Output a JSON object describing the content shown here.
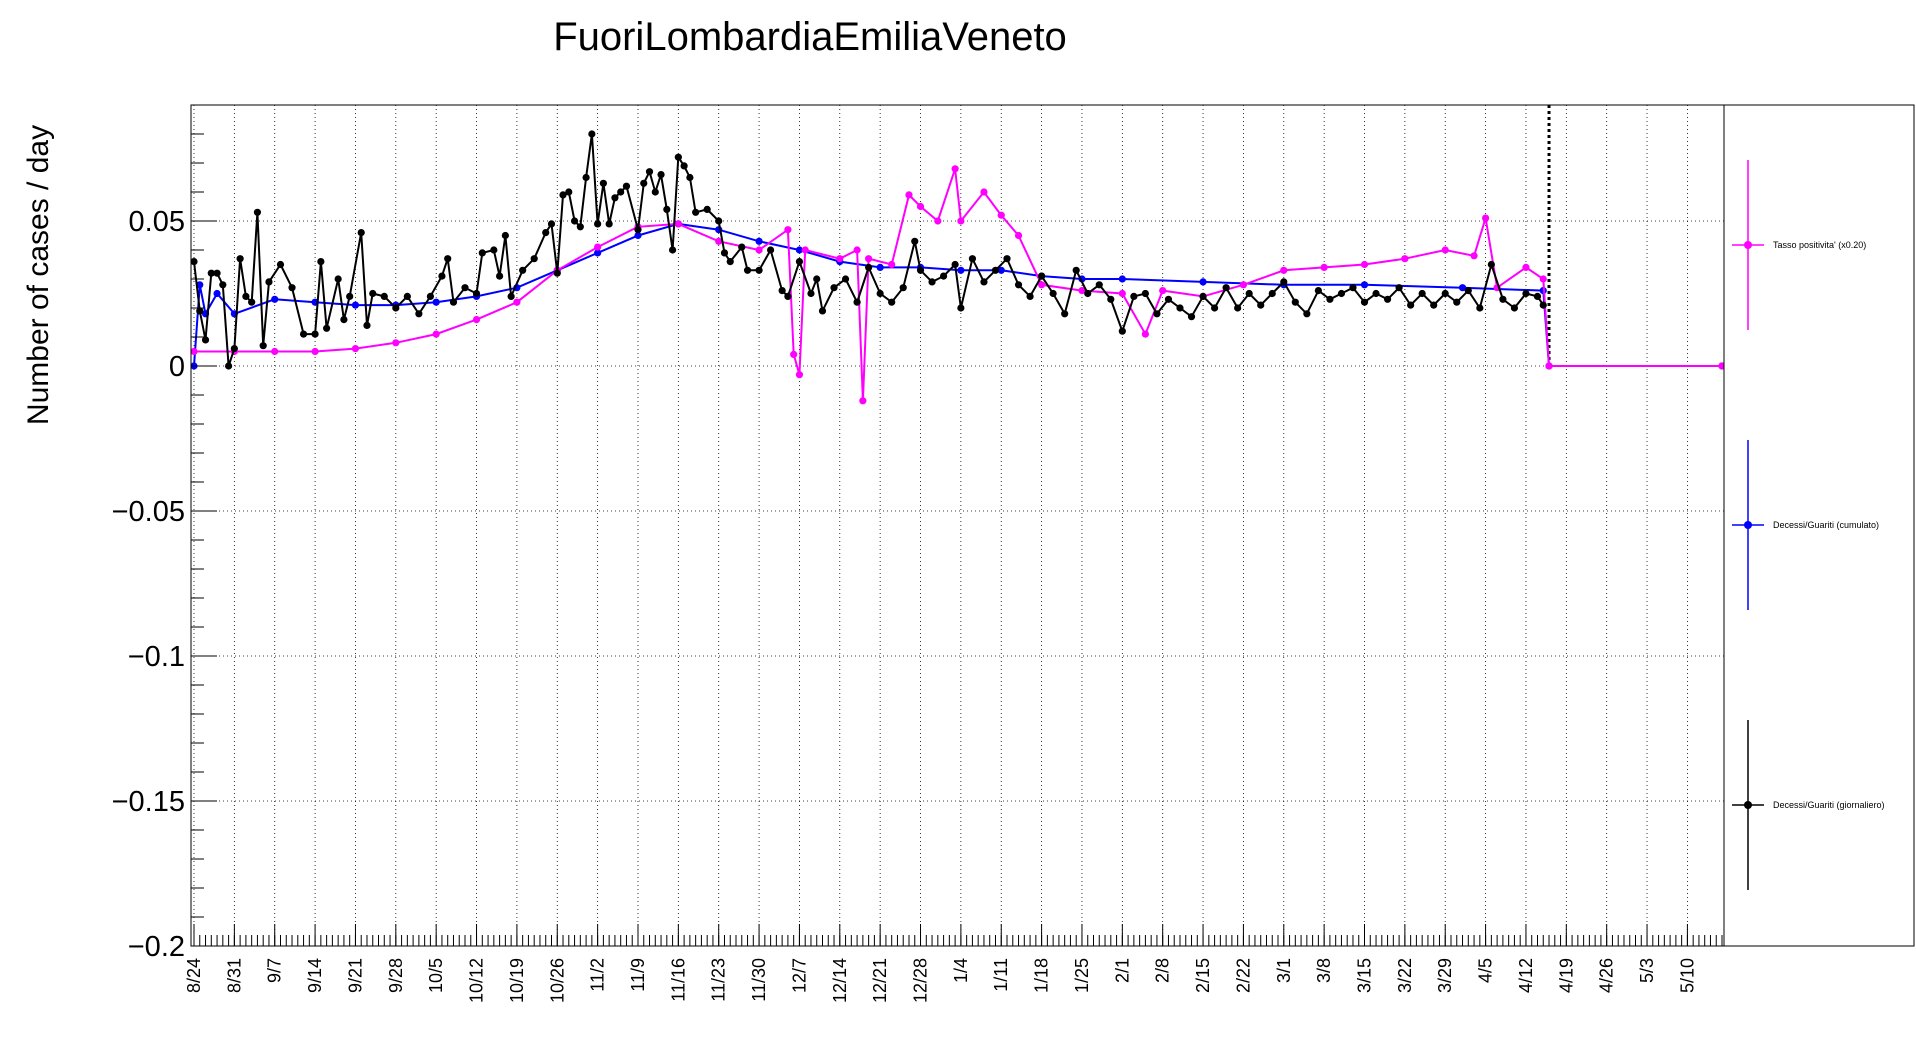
{
  "chart_data": {
    "type": "line",
    "title": "FuoriLombardiaEmiliaVeneto",
    "ylabel": "Number of cases / day",
    "xlabel": "",
    "ylim": [
      -0.2,
      0.09
    ],
    "yticks": [
      0.05,
      0,
      -0.05,
      -0.1,
      -0.15,
      -0.2
    ],
    "ytick_labels": [
      "0.05",
      "0",
      "−0.05",
      "−0.1",
      "−0.15",
      "−0.2"
    ],
    "x_start": "2020-08-24",
    "x_end": "2021-05-16",
    "xtick_dates": [
      "2020-08-24",
      "2020-08-31",
      "2020-09-07",
      "2020-09-14",
      "2020-09-21",
      "2020-09-28",
      "2020-10-05",
      "2020-10-12",
      "2020-10-19",
      "2020-10-26",
      "2020-11-02",
      "2020-11-09",
      "2020-11-16",
      "2020-11-23",
      "2020-11-30",
      "2020-12-07",
      "2020-12-14",
      "2020-12-21",
      "2020-12-28",
      "2021-01-04",
      "2021-01-11",
      "2021-01-18",
      "2021-01-25",
      "2021-02-01",
      "2021-02-08",
      "2021-02-15",
      "2021-02-22",
      "2021-03-01",
      "2021-03-08",
      "2021-03-15",
      "2021-03-22",
      "2021-03-29",
      "2021-04-05",
      "2021-04-12",
      "2021-04-19",
      "2021-04-26",
      "2021-05-03",
      "2021-05-10"
    ],
    "xtick_labels": [
      "8/24",
      "8/31",
      "9/7",
      "9/14",
      "9/21",
      "9/28",
      "10/5",
      "10/12",
      "10/19",
      "10/26",
      "11/2",
      "11/9",
      "11/16",
      "11/23",
      "11/30",
      "12/7",
      "12/14",
      "12/21",
      "12/28",
      "1/4",
      "1/11",
      "1/18",
      "1/25",
      "2/1",
      "2/8",
      "2/15",
      "2/22",
      "3/1",
      "3/8",
      "3/15",
      "3/22",
      "3/29",
      "4/5",
      "4/12",
      "4/19",
      "4/26",
      "5/3",
      "5/10"
    ],
    "vline_date": "2021-04-16",
    "grid": true,
    "legend_position": "right",
    "series": [
      {
        "name": "Tasso positivita' (x0.20)",
        "color": "#ff00ff",
        "points": [
          [
            "2020-08-24",
            0.005
          ],
          [
            "2020-08-31",
            0.005
          ],
          [
            "2020-09-07",
            0.005
          ],
          [
            "2020-09-14",
            0.005
          ],
          [
            "2020-09-21",
            0.006
          ],
          [
            "2020-09-28",
            0.008
          ],
          [
            "2020-10-05",
            0.011
          ],
          [
            "2020-10-12",
            0.016
          ],
          [
            "2020-10-19",
            0.022
          ],
          [
            "2020-10-26",
            0.033
          ],
          [
            "2020-11-02",
            0.041
          ],
          [
            "2020-11-09",
            0.048
          ],
          [
            "2020-11-16",
            0.049
          ],
          [
            "2020-11-23",
            0.043
          ],
          [
            "2020-11-30",
            0.04
          ],
          [
            "2020-12-05",
            0.047
          ],
          [
            "2020-12-06",
            0.004
          ],
          [
            "2020-12-07",
            -0.003
          ],
          [
            "2020-12-08",
            0.04
          ],
          [
            "2020-12-14",
            0.037
          ],
          [
            "2020-12-17",
            0.04
          ],
          [
            "2020-12-18",
            -0.012
          ],
          [
            "2020-12-19",
            0.037
          ],
          [
            "2020-12-23",
            0.035
          ],
          [
            "2020-12-26",
            0.059
          ],
          [
            "2020-12-28",
            0.055
          ],
          [
            "2020-12-31",
            0.05
          ],
          [
            "2021-01-03",
            0.068
          ],
          [
            "2021-01-04",
            0.05
          ],
          [
            "2021-01-08",
            0.06
          ],
          [
            "2021-01-11",
            0.052
          ],
          [
            "2021-01-14",
            0.045
          ],
          [
            "2021-01-18",
            0.028
          ],
          [
            "2021-01-25",
            0.026
          ],
          [
            "2021-02-01",
            0.025
          ],
          [
            "2021-02-05",
            0.011
          ],
          [
            "2021-02-08",
            0.026
          ],
          [
            "2021-02-15",
            0.024
          ],
          [
            "2021-02-22",
            0.028
          ],
          [
            "2021-03-01",
            0.033
          ],
          [
            "2021-03-08",
            0.034
          ],
          [
            "2021-03-15",
            0.035
          ],
          [
            "2021-03-22",
            0.037
          ],
          [
            "2021-03-29",
            0.04
          ],
          [
            "2021-04-03",
            0.038
          ],
          [
            "2021-04-05",
            0.051
          ],
          [
            "2021-04-07",
            0.027
          ],
          [
            "2021-04-12",
            0.034
          ],
          [
            "2021-04-15",
            0.03
          ],
          [
            "2021-04-16",
            0.0
          ],
          [
            "2021-05-16",
            0.0
          ]
        ]
      },
      {
        "name": "Decessi/Guariti (cumulato)",
        "color": "#0000ff",
        "points": [
          [
            "2020-08-24",
            0.0
          ],
          [
            "2020-08-25",
            0.028
          ],
          [
            "2020-08-26",
            0.018
          ],
          [
            "2020-08-28",
            0.025
          ],
          [
            "2020-08-31",
            0.018
          ],
          [
            "2020-09-07",
            0.023
          ],
          [
            "2020-09-14",
            0.022
          ],
          [
            "2020-09-21",
            0.021
          ],
          [
            "2020-09-28",
            0.021
          ],
          [
            "2020-10-05",
            0.022
          ],
          [
            "2020-10-12",
            0.024
          ],
          [
            "2020-10-19",
            0.027
          ],
          [
            "2020-10-26",
            0.033
          ],
          [
            "2020-11-02",
            0.039
          ],
          [
            "2020-11-09",
            0.045
          ],
          [
            "2020-11-16",
            0.049
          ],
          [
            "2020-11-23",
            0.047
          ],
          [
            "2020-11-30",
            0.043
          ],
          [
            "2020-12-07",
            0.04
          ],
          [
            "2020-12-14",
            0.036
          ],
          [
            "2020-12-21",
            0.034
          ],
          [
            "2020-12-28",
            0.034
          ],
          [
            "2021-01-04",
            0.033
          ],
          [
            "2021-01-11",
            0.033
          ],
          [
            "2021-01-18",
            0.031
          ],
          [
            "2021-01-25",
            0.03
          ],
          [
            "2021-02-01",
            0.03
          ],
          [
            "2021-02-15",
            0.029
          ],
          [
            "2021-03-01",
            0.028
          ],
          [
            "2021-03-15",
            0.028
          ],
          [
            "2021-04-01",
            0.027
          ],
          [
            "2021-04-15",
            0.026
          ],
          [
            "2021-04-16",
            0.0
          ],
          [
            "2021-05-16",
            0.0
          ]
        ]
      },
      {
        "name": "Decessi/Guariti (giornaliero)",
        "color": "#000000",
        "points": [
          [
            "2020-08-24",
            0.036
          ],
          [
            "2020-08-25",
            0.019
          ],
          [
            "2020-08-26",
            0.009
          ],
          [
            "2020-08-27",
            0.032
          ],
          [
            "2020-08-28",
            0.032
          ],
          [
            "2020-08-29",
            0.028
          ],
          [
            "2020-08-30",
            0.0
          ],
          [
            "2020-08-31",
            0.006
          ],
          [
            "2020-09-01",
            0.037
          ],
          [
            "2020-09-02",
            0.024
          ],
          [
            "2020-09-03",
            0.022
          ],
          [
            "2020-09-04",
            0.053
          ],
          [
            "2020-09-05",
            0.007
          ],
          [
            "2020-09-06",
            0.029
          ],
          [
            "2020-09-08",
            0.035
          ],
          [
            "2020-09-10",
            0.027
          ],
          [
            "2020-09-12",
            0.011
          ],
          [
            "2020-09-14",
            0.011
          ],
          [
            "2020-09-15",
            0.036
          ],
          [
            "2020-09-16",
            0.013
          ],
          [
            "2020-09-18",
            0.03
          ],
          [
            "2020-09-19",
            0.016
          ],
          [
            "2020-09-20",
            0.024
          ],
          [
            "2020-09-22",
            0.046
          ],
          [
            "2020-09-23",
            0.014
          ],
          [
            "2020-09-24",
            0.025
          ],
          [
            "2020-09-26",
            0.024
          ],
          [
            "2020-09-28",
            0.02
          ],
          [
            "2020-09-30",
            0.024
          ],
          [
            "2020-10-02",
            0.018
          ],
          [
            "2020-10-04",
            0.024
          ],
          [
            "2020-10-06",
            0.031
          ],
          [
            "2020-10-07",
            0.037
          ],
          [
            "2020-10-08",
            0.022
          ],
          [
            "2020-10-10",
            0.027
          ],
          [
            "2020-10-12",
            0.025
          ],
          [
            "2020-10-13",
            0.039
          ],
          [
            "2020-10-15",
            0.04
          ],
          [
            "2020-10-16",
            0.031
          ],
          [
            "2020-10-17",
            0.045
          ],
          [
            "2020-10-18",
            0.024
          ],
          [
            "2020-10-20",
            0.033
          ],
          [
            "2020-10-22",
            0.037
          ],
          [
            "2020-10-24",
            0.046
          ],
          [
            "2020-10-25",
            0.049
          ],
          [
            "2020-10-26",
            0.032
          ],
          [
            "2020-10-27",
            0.059
          ],
          [
            "2020-10-28",
            0.06
          ],
          [
            "2020-10-29",
            0.05
          ],
          [
            "2020-10-30",
            0.048
          ],
          [
            "2020-10-31",
            0.065
          ],
          [
            "2020-11-01",
            0.08
          ],
          [
            "2020-11-02",
            0.049
          ],
          [
            "2020-11-03",
            0.063
          ],
          [
            "2020-11-04",
            0.049
          ],
          [
            "2020-11-05",
            0.058
          ],
          [
            "2020-11-06",
            0.06
          ],
          [
            "2020-11-07",
            0.062
          ],
          [
            "2020-11-09",
            0.047
          ],
          [
            "2020-11-10",
            0.063
          ],
          [
            "2020-11-11",
            0.067
          ],
          [
            "2020-11-12",
            0.06
          ],
          [
            "2020-11-13",
            0.066
          ],
          [
            "2020-11-14",
            0.054
          ],
          [
            "2020-11-15",
            0.04
          ],
          [
            "2020-11-16",
            0.072
          ],
          [
            "2020-11-17",
            0.069
          ],
          [
            "2020-11-18",
            0.065
          ],
          [
            "2020-11-19",
            0.053
          ],
          [
            "2020-11-21",
            0.054
          ],
          [
            "2020-11-23",
            0.05
          ],
          [
            "2020-11-24",
            0.039
          ],
          [
            "2020-11-25",
            0.036
          ],
          [
            "2020-11-27",
            0.041
          ],
          [
            "2020-11-28",
            0.033
          ],
          [
            "2020-11-30",
            0.033
          ],
          [
            "2020-12-02",
            0.04
          ],
          [
            "2020-12-04",
            0.026
          ],
          [
            "2020-12-05",
            0.024
          ],
          [
            "2020-12-07",
            0.036
          ],
          [
            "2020-12-09",
            0.025
          ],
          [
            "2020-12-10",
            0.03
          ],
          [
            "2020-12-11",
            0.019
          ],
          [
            "2020-12-13",
            0.027
          ],
          [
            "2020-12-15",
            0.03
          ],
          [
            "2020-12-17",
            0.022
          ],
          [
            "2020-12-19",
            0.034
          ],
          [
            "2020-12-21",
            0.025
          ],
          [
            "2020-12-23",
            0.022
          ],
          [
            "2020-12-25",
            0.027
          ],
          [
            "2020-12-27",
            0.043
          ],
          [
            "2020-12-28",
            0.033
          ],
          [
            "2020-12-30",
            0.029
          ],
          [
            "2021-01-01",
            0.031
          ],
          [
            "2021-01-03",
            0.035
          ],
          [
            "2021-01-04",
            0.02
          ],
          [
            "2021-01-06",
            0.037
          ],
          [
            "2021-01-08",
            0.029
          ],
          [
            "2021-01-10",
            0.033
          ],
          [
            "2021-01-12",
            0.037
          ],
          [
            "2021-01-14",
            0.028
          ],
          [
            "2021-01-16",
            0.024
          ],
          [
            "2021-01-18",
            0.031
          ],
          [
            "2021-01-20",
            0.025
          ],
          [
            "2021-01-22",
            0.018
          ],
          [
            "2021-01-24",
            0.033
          ],
          [
            "2021-01-26",
            0.025
          ],
          [
            "2021-01-28",
            0.028
          ],
          [
            "2021-01-30",
            0.023
          ],
          [
            "2021-02-01",
            0.012
          ],
          [
            "2021-02-03",
            0.024
          ],
          [
            "2021-02-05",
            0.025
          ],
          [
            "2021-02-07",
            0.018
          ],
          [
            "2021-02-09",
            0.023
          ],
          [
            "2021-02-11",
            0.02
          ],
          [
            "2021-02-13",
            0.017
          ],
          [
            "2021-02-15",
            0.024
          ],
          [
            "2021-02-17",
            0.02
          ],
          [
            "2021-02-19",
            0.027
          ],
          [
            "2021-02-21",
            0.02
          ],
          [
            "2021-02-23",
            0.025
          ],
          [
            "2021-02-25",
            0.021
          ],
          [
            "2021-02-27",
            0.025
          ],
          [
            "2021-03-01",
            0.029
          ],
          [
            "2021-03-03",
            0.022
          ],
          [
            "2021-03-05",
            0.018
          ],
          [
            "2021-03-07",
            0.026
          ],
          [
            "2021-03-09",
            0.023
          ],
          [
            "2021-03-11",
            0.025
          ],
          [
            "2021-03-13",
            0.027
          ],
          [
            "2021-03-15",
            0.022
          ],
          [
            "2021-03-17",
            0.025
          ],
          [
            "2021-03-19",
            0.023
          ],
          [
            "2021-03-21",
            0.027
          ],
          [
            "2021-03-23",
            0.021
          ],
          [
            "2021-03-25",
            0.025
          ],
          [
            "2021-03-27",
            0.021
          ],
          [
            "2021-03-29",
            0.025
          ],
          [
            "2021-03-31",
            0.022
          ],
          [
            "2021-04-02",
            0.026
          ],
          [
            "2021-04-04",
            0.02
          ],
          [
            "2021-04-06",
            0.035
          ],
          [
            "2021-04-08",
            0.023
          ],
          [
            "2021-04-10",
            0.02
          ],
          [
            "2021-04-12",
            0.025
          ],
          [
            "2021-04-14",
            0.024
          ],
          [
            "2021-04-15",
            0.021
          ]
        ]
      }
    ]
  }
}
